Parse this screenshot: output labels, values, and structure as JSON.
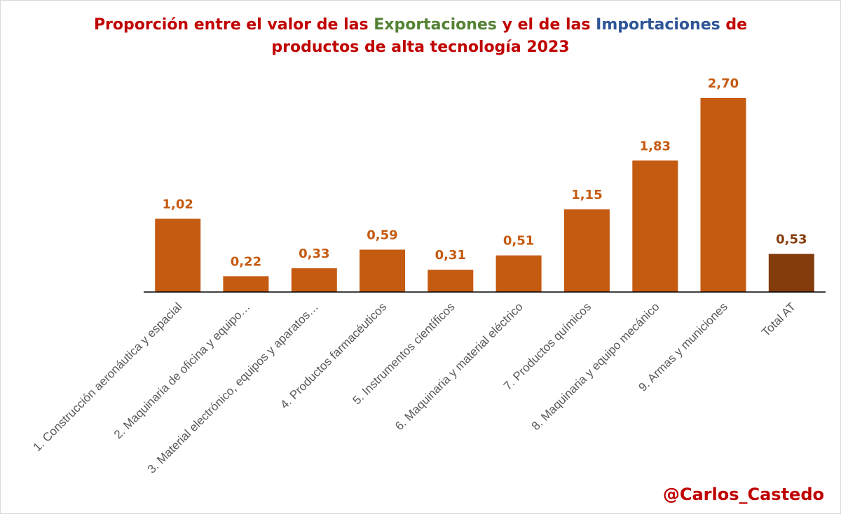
{
  "title": {
    "line1_pre": "Proporción entre el valor de las ",
    "line1_exp": "Exportaciones",
    "line1_mid": " y el de las ",
    "line1_imp": "Importaciones",
    "line1_post": " de",
    "line2": "productos de alta tecnología 2023"
  },
  "watermark": "@Carlos_Castedo",
  "colors": {
    "bar": "#c55a11",
    "total_bar": "#843c0c",
    "label": "#c55a11",
    "total_label": "#843c0c",
    "title": "#c00000",
    "exportaciones": "#548235",
    "importaciones": "#2f5597",
    "axis_text": "#595959"
  },
  "chart_data": {
    "type": "bar",
    "title": "Proporción entre el valor de las Exportaciones y el de las Importaciones de productos de alta tecnología 2023",
    "categories": [
      "1. Construcción aeronáutica y espacial",
      "2. Maquinaria de oficina y equipo…",
      "3. Material electrónico, equipos y aparatos…",
      "4. Productos farmacéuticos",
      "5. Instrumentos científicos",
      "6. Maquinaria y material eléctrico",
      "7. Productos químicos",
      "8. Maquinaria y equipo mecánico",
      "9. Armas y municiones",
      "Total AT"
    ],
    "values": [
      1.02,
      0.22,
      0.33,
      0.59,
      0.31,
      0.51,
      1.15,
      1.83,
      2.7,
      0.53
    ],
    "value_labels": [
      "1,02",
      "0,22",
      "0,33",
      "0,59",
      "0,31",
      "0,51",
      "1,15",
      "1,83",
      "2,70",
      "0,53"
    ],
    "highlight_index": 9,
    "ylim": [
      0,
      2.7
    ],
    "grid": false,
    "legend": "none",
    "xlabel": "",
    "ylabel": ""
  }
}
